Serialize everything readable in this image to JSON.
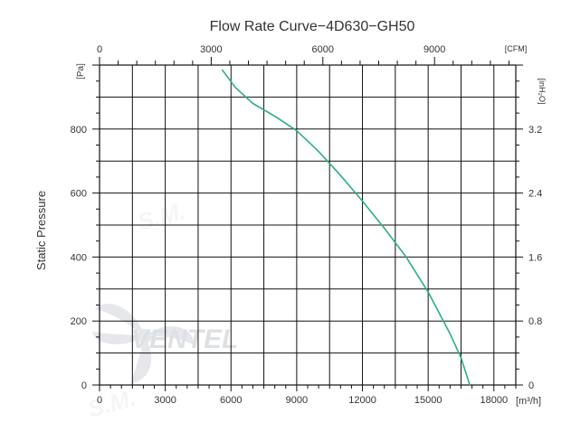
{
  "chart_data": {
    "type": "line",
    "title": "Flow Rate Curve−4D630−GH50",
    "ylabel": "Static  Pressure",
    "x_unit": "[m³/h]",
    "top_unit": "[CFM]",
    "left_unit": "[Pa]",
    "right_unit": "[inH₂O]",
    "xlim": [
      0,
      19000
    ],
    "ylim": [
      0,
      1000
    ],
    "x_ticks": [
      {
        "value": 0,
        "label": "0"
      },
      {
        "value": 3000,
        "label": "3000"
      },
      {
        "value": 6000,
        "label": "6000"
      },
      {
        "value": 9000,
        "label": "9000"
      },
      {
        "value": 12000,
        "label": "12000"
      },
      {
        "value": 15000,
        "label": "15000"
      },
      {
        "value": 18000,
        "label": "18000"
      }
    ],
    "top_ticks": [
      {
        "value": 0,
        "label": "0"
      },
      {
        "value": 3000,
        "label": "3000"
      },
      {
        "value": 6000,
        "label": "6000"
      },
      {
        "value": 9000,
        "label": "9000"
      }
    ],
    "y_ticks": [
      {
        "value": 0,
        "label": "0"
      },
      {
        "value": 200,
        "label": "200"
      },
      {
        "value": 400,
        "label": "400"
      },
      {
        "value": 600,
        "label": "600"
      },
      {
        "value": 800,
        "label": "800"
      }
    ],
    "right_ticks": [
      {
        "value": 0,
        "label": "0"
      },
      {
        "value": 0.8,
        "label": "0.8"
      },
      {
        "value": 1.6,
        "label": "1.6"
      },
      {
        "value": 2.4,
        "label": "2.4"
      },
      {
        "value": 3.2,
        "label": "3.2"
      }
    ],
    "grid": true,
    "series": [
      {
        "color": "#2bb07c",
        "x": [
          5600,
          6200,
          7000,
          8000,
          9000,
          10000,
          11000,
          12000,
          13000,
          14000,
          15000,
          16000,
          16500,
          16900
        ],
        "y": [
          985,
          930,
          880,
          840,
          795,
          730,
          655,
          575,
          490,
          400,
          290,
          160,
          85,
          0
        ]
      }
    ]
  },
  "watermark": {
    "brand": "VENTEL",
    "sub": "S.M."
  }
}
